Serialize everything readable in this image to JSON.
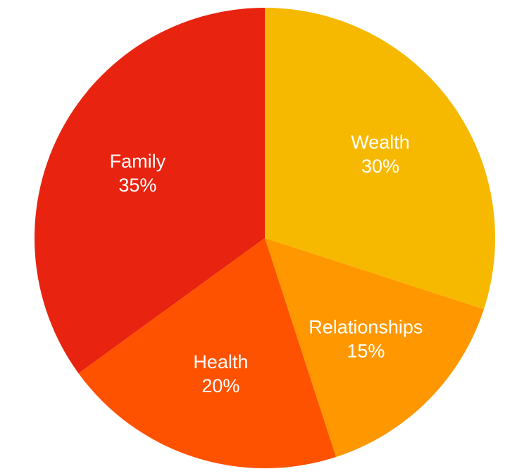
{
  "chart_data": {
    "type": "pie",
    "title": "",
    "slices": [
      {
        "label": "Wealth",
        "value": 30,
        "display": "30%",
        "color": "#F7B900"
      },
      {
        "label": "Relationships",
        "value": 15,
        "display": "15%",
        "color": "#FF9800"
      },
      {
        "label": "Health",
        "value": 20,
        "display": "20%",
        "color": "#FF5200"
      },
      {
        "label": "Family",
        "value": 35,
        "display": "35%",
        "color": "#E8230F"
      }
    ],
    "start_angle_deg": 0,
    "direction": "clockwise",
    "legend": "none"
  }
}
